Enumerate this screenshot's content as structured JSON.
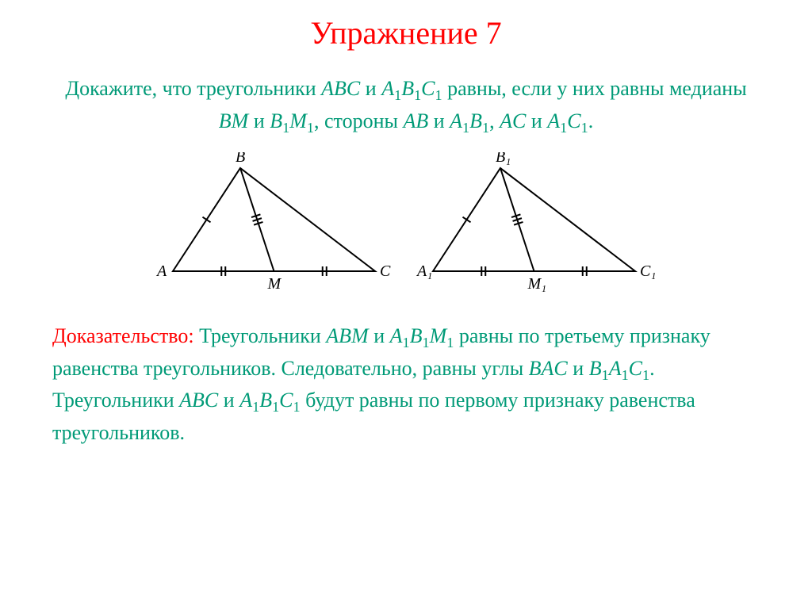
{
  "title": "Упражнение 7",
  "problem_html": "Докажите, что треугольники <span class=\"ital\">ABC</span> и <span class=\"ital\">A</span><sub>1</sub><span class=\"ital\">B</span><sub>1</sub><span class=\"ital\">C</span><sub>1</sub> равны, если у них равны медианы <span class=\"ital\">BM</span> и <span class=\"ital\">B</span><sub>1</sub><span class=\"ital\">M</span><sub>1</sub>, стороны <span class=\"ital\">AB</span> и <span class=\"ital\">A</span><sub>1</sub><span class=\"ital\">B</span><sub>1</sub>, <span class=\"ital\">AC</span> и <span class=\"ital\">A</span><sub>1</sub><span class=\"ital\">C</span><sub>1</sub>.",
  "proof_lead": "Доказательство:",
  "proof_html": " Треугольники <span class=\"ital\">ABM</span> и <span class=\"ital\">A</span><sub>1</sub><span class=\"ital\">B</span><sub>1</sub><span class=\"ital\">M</span><sub>1</sub> равны по третьему признаку равенства треугольников. Следовательно, равны углы <span class=\"ital\">BAC</span> и <span class=\"ital\">B</span><sub>1</sub><span class=\"ital\">A</span><sub>1</sub><span class=\"ital\">C</span><sub>1</sub>. Треугольники <span class=\"ital\">ABC</span> и <span class=\"ital\">A</span><sub>1</sub><span class=\"ital\">B</span><sub>1</sub><span class=\"ital\">C</span><sub>1</sub> будут равны по первому признаку равенства треугольников.",
  "colors": {
    "title": "#ff0000",
    "body": "#009a77",
    "stroke": "#000000",
    "background": "#ffffff"
  },
  "font": {
    "family": "Times New Roman",
    "title_size_pt": 30,
    "body_size_pt": 20,
    "label_size_pt": 18
  },
  "figures": [
    {
      "type": "triangle_with_median",
      "vertices": {
        "A": [
          30,
          150
        ],
        "B": [
          115,
          20
        ],
        "C": [
          285,
          150
        ]
      },
      "median_foot": {
        "M": [
          157.5,
          150
        ]
      },
      "labels": {
        "A": "A",
        "B": "B",
        "C": "C",
        "M": "M"
      },
      "tick_marks": {
        "AB": 1,
        "BM": 3,
        "AM": 2,
        "MC": 2
      },
      "stroke_color": "#000000",
      "stroke_width": 2,
      "label_font_size": 20
    },
    {
      "type": "triangle_with_median",
      "vertices": {
        "A": [
          30,
          150
        ],
        "B": [
          115,
          20
        ],
        "C": [
          285,
          150
        ]
      },
      "median_foot": {
        "M": [
          157.5,
          150
        ]
      },
      "labels": {
        "A": "A₁",
        "B": "B₁",
        "C": "C₁",
        "M": "M₁"
      },
      "tick_marks": {
        "AB": 1,
        "BM": 3,
        "AM": 2,
        "MC": 2
      },
      "stroke_color": "#000000",
      "stroke_width": 2,
      "label_font_size": 20
    }
  ]
}
